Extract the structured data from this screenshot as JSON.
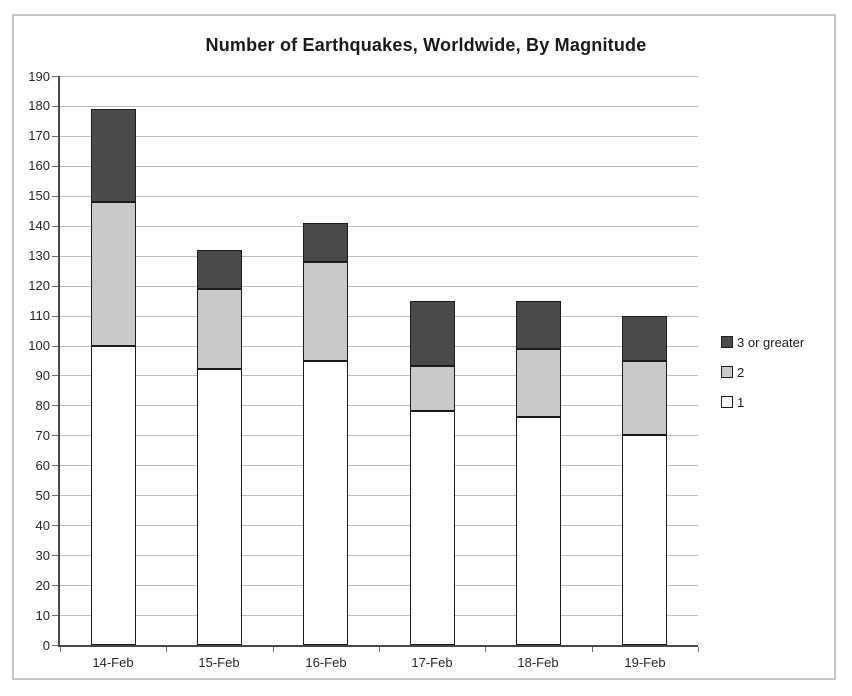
{
  "chart_data": {
    "type": "bar",
    "stacked": true,
    "title": "Number of Earthquakes, Worldwide, By Magnitude",
    "categories": [
      "14-Feb",
      "15-Feb",
      "16-Feb",
      "17-Feb",
      "18-Feb",
      "19-Feb"
    ],
    "series": [
      {
        "name": "1",
        "color": "#ffffff",
        "values": [
          100,
          92,
          95,
          78,
          76,
          70
        ]
      },
      {
        "name": "2",
        "color": "#c9c9c9",
        "values": [
          48,
          27,
          33,
          15,
          23,
          25
        ]
      },
      {
        "name": "3 or greater",
        "color": "#4a4a4a",
        "values": [
          31,
          13,
          13,
          22,
          16,
          15
        ]
      }
    ],
    "stack_totals": [
      179,
      132,
      141,
      115,
      115,
      110
    ],
    "xlabel": "",
    "ylabel": "",
    "ylim": [
      0,
      190
    ],
    "ytick_step": 10,
    "grid": true,
    "legend_position": "right",
    "legend_order_top_to_bottom": [
      "3 or greater",
      "2",
      "1"
    ],
    "style_colors": {
      "segment_border": "#1c1c1c",
      "gridline": "#bdbdbd",
      "axis_line": "#474747",
      "figure_border": "#c6c6c6",
      "text": "#1a1a1a"
    }
  }
}
